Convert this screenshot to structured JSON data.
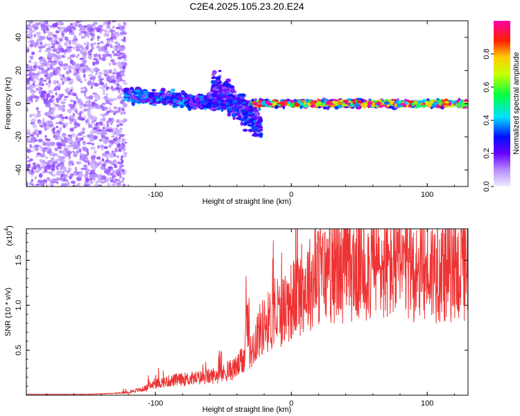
{
  "title": "C2E4.2025.105.23.20.E24",
  "chart_data": [
    {
      "type": "heatmap",
      "xlabel": "Height of straight line (km)",
      "ylabel": "Frequency (Hz)",
      "xlim": [
        -195,
        130
      ],
      "ylim": [
        -50,
        50
      ],
      "xticks": [
        -100,
        0,
        100
      ],
      "yticks": [
        -40,
        -20,
        0,
        20,
        40
      ],
      "colorbar": {
        "label": "Normalized spectral amplitude",
        "range": [
          0,
          1
        ],
        "ticks": [
          0.0,
          0.2,
          0.4,
          0.6,
          0.8
        ]
      },
      "regions": [
        {
          "x": [
            -195,
            -122
          ],
          "freq_center": 0,
          "freq_spread": 50,
          "amplitude": 0.12
        },
        {
          "x": [
            -122,
            -75
          ],
          "freq_center": 4,
          "freq_spread": 6,
          "amplitude": 0.32
        },
        {
          "x": [
            -75,
            -35
          ],
          "freq_center": 1,
          "freq_spread": 6,
          "amplitude": 0.3
        },
        {
          "x": [
            -58,
            -22
          ],
          "freq_center": 0,
          "freq_spread": 12,
          "amplitude": 0.28
        },
        {
          "x": [
            -30,
            130
          ],
          "freq_center": 0,
          "freq_spread": 3,
          "amplitude": 0.85
        }
      ]
    },
    {
      "type": "line",
      "xlabel": "Height of straight line (km)",
      "ylabel": "SNR (10 * v/v)",
      "y_multiplier": "(x10",
      "y_multiplier_exp": "4",
      "xlim": [
        -195,
        130
      ],
      "ylim": [
        0,
        1.85
      ],
      "xticks": [
        -100,
        0,
        100
      ],
      "yticks": [
        0.5,
        1.0,
        1.5
      ],
      "series": [
        {
          "color": "#ee3333",
          "x": [
            -195,
            -170,
            -150,
            -130,
            -122,
            -110,
            -100,
            -90,
            -80,
            -70,
            -60,
            -50,
            -40,
            -35,
            -33,
            -30,
            -25,
            -20,
            -10,
            0,
            10,
            20,
            30,
            50,
            70,
            80,
            90,
            110,
            130
          ],
          "y": [
            0.01,
            0.01,
            0.01,
            0.02,
            0.03,
            0.06,
            0.12,
            0.15,
            0.17,
            0.18,
            0.2,
            0.23,
            0.3,
            0.38,
            0.65,
            0.45,
            0.65,
            0.75,
            0.85,
            1.0,
            1.15,
            1.27,
            1.32,
            1.35,
            1.36,
            1.35,
            1.34,
            1.33,
            1.32
          ]
        }
      ]
    }
  ]
}
